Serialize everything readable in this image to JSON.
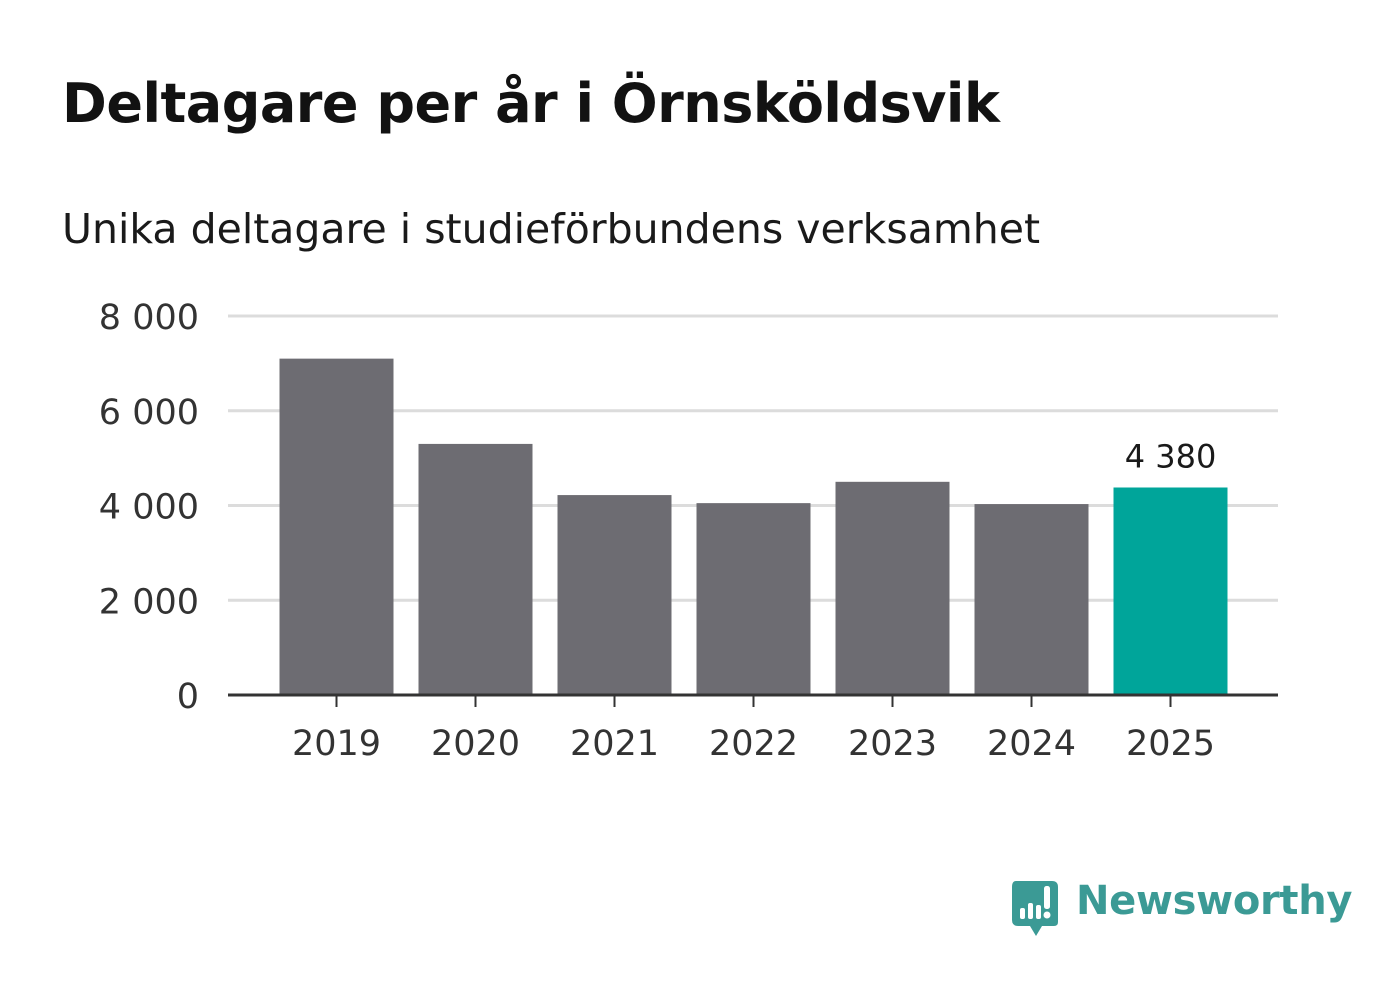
{
  "header": {
    "title": "Deltagare per år i Örnsköldsvik",
    "subtitle": "Unika deltagare i studieförbundens verksamhet"
  },
  "brand": {
    "name": "Newsworthy",
    "color": "#3b9a95",
    "icon": "newsworthy-bar-chart-icon"
  },
  "colors": {
    "bar_default": "#6d6c72",
    "bar_highlight": "#00a59a",
    "grid": "#dcdcdc",
    "axis": "#333333",
    "tick_text": "#333333"
  },
  "chart_data": {
    "type": "bar",
    "title": "Deltagare per år i Örnsköldsvik",
    "subtitle": "Unika deltagare i studieförbundens verksamhet",
    "categories": [
      "2019",
      "2020",
      "2021",
      "2022",
      "2023",
      "2024",
      "2025"
    ],
    "values": [
      7100,
      5300,
      4220,
      4050,
      4500,
      4030,
      4380
    ],
    "highlight_index": 6,
    "data_labels": [
      {
        "index": 6,
        "text": "4 380"
      }
    ],
    "y_ticks": [
      {
        "value": 0,
        "label": "0"
      },
      {
        "value": 2000,
        "label": "2 000"
      },
      {
        "value": 4000,
        "label": "4 000"
      },
      {
        "value": 6000,
        "label": "6 000"
      },
      {
        "value": 8000,
        "label": "8 000"
      }
    ],
    "ylim": [
      0,
      8000
    ],
    "xlabel": "",
    "ylabel": "",
    "grid": true,
    "legend": "none"
  }
}
